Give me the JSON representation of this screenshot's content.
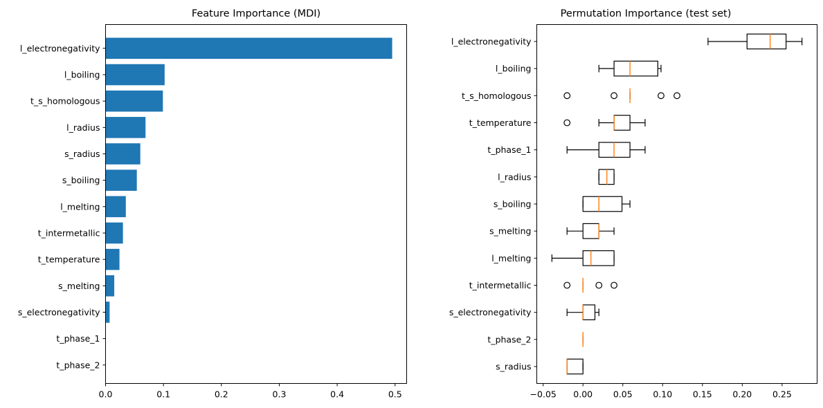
{
  "chart_data": [
    {
      "type": "bar",
      "orientation": "horizontal",
      "title": "Feature Importance (MDI)",
      "xlabel": "",
      "ylabel": "",
      "xlim": [
        0,
        0.52
      ],
      "xticks": [
        "0.0",
        "0.1",
        "0.2",
        "0.3",
        "0.4",
        "0.5"
      ],
      "xtick_values": [
        0,
        0.1,
        0.2,
        0.3,
        0.4,
        0.5
      ],
      "bar_color": "#1f77b4",
      "categories": [
        "l_electronegativity",
        "l_boiling",
        "t_s_homologous",
        "l_radius",
        "s_radius",
        "s_boiling",
        "l_melting",
        "t_intermetallic",
        "t_temperature",
        "s_melting",
        "s_electronegativity",
        "t_phase_1",
        "t_phase_2"
      ],
      "values": [
        0.495,
        0.102,
        0.099,
        0.069,
        0.06,
        0.054,
        0.035,
        0.03,
        0.024,
        0.015,
        0.007,
        0.0,
        0.0
      ]
    },
    {
      "type": "box",
      "orientation": "horizontal",
      "title": "Permutation Importance (test set)",
      "xlabel": "",
      "ylabel": "",
      "xlim": [
        -0.058,
        0.294
      ],
      "xticks": [
        "−0.05",
        "0.00",
        "0.05",
        "0.10",
        "0.15",
        "0.20",
        "0.25"
      ],
      "xtick_values": [
        -0.05,
        0,
        0.05,
        0.1,
        0.15,
        0.2,
        0.25
      ],
      "median_color": "#ff7f0e",
      "categories": [
        "l_electronegativity",
        "l_boiling",
        "t_s_homologous",
        "t_temperature",
        "t_phase_1",
        "l_radius",
        "s_boiling",
        "s_melting",
        "l_melting",
        "t_intermetallic",
        "s_electronegativity",
        "t_phase_2",
        "s_radius"
      ],
      "boxes": [
        {
          "whislo": 0.157,
          "q1": 0.206,
          "med": 0.235,
          "q3": 0.255,
          "whishi": 0.275,
          "fliers": []
        },
        {
          "whislo": 0.02,
          "q1": 0.039,
          "med": 0.059,
          "q3": 0.094,
          "whishi": 0.098,
          "fliers": []
        },
        {
          "whislo": 0.059,
          "q1": 0.059,
          "med": 0.059,
          "q3": 0.059,
          "whishi": 0.059,
          "fliers": [
            -0.02,
            0.039,
            0.098,
            0.118
          ]
        },
        {
          "whislo": 0.02,
          "q1": 0.039,
          "med": 0.039,
          "q3": 0.059,
          "whishi": 0.078,
          "fliers": [
            -0.02
          ]
        },
        {
          "whislo": -0.02,
          "q1": 0.02,
          "med": 0.039,
          "q3": 0.059,
          "whishi": 0.078,
          "fliers": []
        },
        {
          "whislo": 0.02,
          "q1": 0.02,
          "med": 0.03,
          "q3": 0.039,
          "whishi": 0.039,
          "fliers": []
        },
        {
          "whislo": 0.0,
          "q1": 0.0,
          "med": 0.02,
          "q3": 0.049,
          "whishi": 0.059,
          "fliers": []
        },
        {
          "whislo": -0.02,
          "q1": 0.0,
          "med": 0.02,
          "q3": 0.02,
          "whishi": 0.039,
          "fliers": []
        },
        {
          "whislo": -0.039,
          "q1": 0.0,
          "med": 0.01,
          "q3": 0.039,
          "whishi": 0.039,
          "fliers": []
        },
        {
          "whislo": 0.0,
          "q1": 0.0,
          "med": 0.0,
          "q3": 0.0,
          "whishi": 0.0,
          "fliers": [
            -0.02,
            0.02,
            0.039
          ]
        },
        {
          "whislo": -0.02,
          "q1": 0.0,
          "med": 0.0,
          "q3": 0.015,
          "whishi": 0.02,
          "fliers": []
        },
        {
          "whislo": 0.0,
          "q1": 0.0,
          "med": 0.0,
          "q3": 0.0,
          "whishi": 0.0,
          "fliers": []
        },
        {
          "whislo": -0.02,
          "q1": -0.02,
          "med": -0.02,
          "q3": 0.0,
          "whishi": 0.0,
          "fliers": []
        }
      ]
    }
  ]
}
